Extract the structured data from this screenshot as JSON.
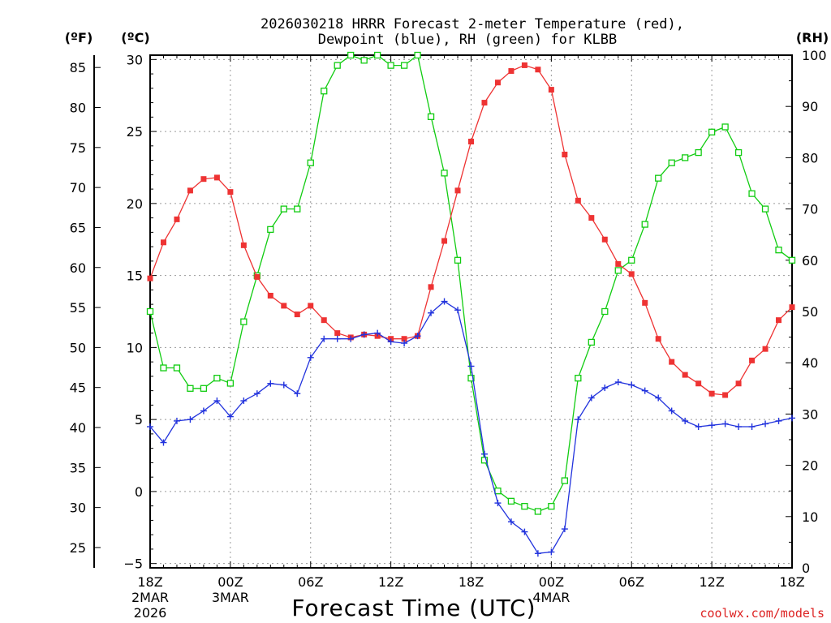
{
  "title_line1": "2026030218 HRRR Forecast 2-meter Temperature (red),",
  "title_line2": "Dewpoint (blue), RH (green) for KLBB",
  "unit_f": "(ºF)",
  "unit_c": "(ºC)",
  "unit_rh": "(RH)",
  "credit": "coolwx.com/models",
  "credit_color": "#dd2222",
  "colors": {
    "temperature": "#ee3333",
    "dewpoint": "#2233dd",
    "rh": "#11cc11"
  },
  "chart_data": {
    "type": "line",
    "title": "2026030218 HRRR Forecast 2-meter Temperature (red), Dewpoint (blue), RH (green) for KLBB",
    "xlabel": "Forecast Time (UTC)",
    "ylabel_left_f": "(ºF)",
    "ylabel_left_c": "(ºC)",
    "ylabel_right": "(RH)",
    "x_hours": [
      0,
      1,
      2,
      3,
      4,
      5,
      6,
      7,
      8,
      9,
      10,
      11,
      12,
      13,
      14,
      15,
      16,
      17,
      18,
      19,
      20,
      21,
      22,
      23,
      24,
      25,
      26,
      27,
      28,
      29,
      30,
      31,
      32,
      33,
      34,
      35,
      36,
      37,
      38,
      39,
      40,
      41,
      42,
      43,
      44,
      45,
      46,
      47,
      48
    ],
    "xlim": [
      0,
      48
    ],
    "x_ticks": [
      {
        "hour": 0,
        "label": "18Z",
        "date": "2MAR",
        "year": "2026"
      },
      {
        "hour": 6,
        "label": "00Z",
        "date": "3MAR",
        "year": ""
      },
      {
        "hour": 12,
        "label": "06Z",
        "date": "",
        "year": ""
      },
      {
        "hour": 18,
        "label": "12Z",
        "date": "",
        "year": ""
      },
      {
        "hour": 24,
        "label": "18Z",
        "date": "",
        "year": ""
      },
      {
        "hour": 30,
        "label": "00Z",
        "date": "4MAR",
        "year": ""
      },
      {
        "hour": 36,
        "label": "06Z",
        "date": "",
        "year": ""
      },
      {
        "hour": 42,
        "label": "12Z",
        "date": "",
        "year": ""
      },
      {
        "hour": 48,
        "label": "18Z",
        "date": "",
        "year": ""
      }
    ],
    "ylim_c": [
      -5.3,
      30.3
    ],
    "ylim_rh": [
      0,
      100
    ],
    "y_ticks_c": [
      -5,
      0,
      5,
      10,
      15,
      20,
      25,
      30
    ],
    "y_ticks_f": [
      25,
      30,
      35,
      40,
      45,
      50,
      55,
      60,
      65,
      70,
      75,
      80,
      85
    ],
    "y_ticks_rh": [
      0,
      10,
      20,
      30,
      40,
      50,
      60,
      70,
      80,
      90,
      100
    ],
    "grid": true,
    "series": [
      {
        "name": "Temperature",
        "unit": "C",
        "marker": "filled-square",
        "values": [
          14.8,
          17.3,
          18.9,
          20.9,
          21.7,
          21.8,
          20.8,
          17.1,
          14.9,
          13.6,
          12.9,
          12.3,
          12.9,
          11.9,
          11.0,
          10.7,
          10.9,
          10.8,
          10.6,
          10.6,
          10.8,
          14.2,
          17.4,
          20.9,
          24.3,
          27.0,
          28.4,
          29.2,
          29.6,
          29.3,
          27.9,
          23.4,
          20.2,
          19.0,
          17.5,
          15.8,
          15.1,
          13.1,
          10.6,
          9.0,
          8.1,
          7.5,
          6.8,
          6.7,
          7.5,
          9.1,
          9.9,
          11.9,
          12.8
        ]
      },
      {
        "name": "Dewpoint",
        "unit": "C",
        "marker": "plus",
        "values": [
          4.5,
          3.4,
          4.9,
          5.0,
          5.6,
          6.3,
          5.2,
          6.3,
          6.8,
          7.5,
          7.4,
          6.8,
          9.3,
          10.6,
          10.6,
          10.6,
          10.9,
          11.0,
          10.4,
          10.3,
          10.8,
          12.4,
          13.2,
          12.6,
          8.7,
          2.6,
          -0.8,
          -2.1,
          -2.8,
          -4.3,
          -4.2,
          -2.6,
          5.0,
          6.5,
          7.2,
          7.6,
          7.4,
          7.0,
          6.5,
          5.6,
          4.9,
          4.5,
          4.6,
          4.7,
          4.5,
          4.5,
          4.7,
          4.9,
          5.1
        ]
      },
      {
        "name": "RH",
        "unit": "%",
        "marker": "open-square",
        "values": [
          50,
          39,
          39,
          35,
          35,
          37,
          36,
          48,
          57,
          66,
          70,
          70,
          79,
          93,
          98,
          100,
          99,
          100,
          98,
          98,
          100,
          88,
          77,
          60,
          37,
          21,
          15,
          13,
          12,
          11,
          12,
          17,
          37,
          44,
          50,
          58,
          60,
          67,
          76,
          79,
          80,
          81,
          85,
          86,
          81,
          73,
          70,
          62,
          60
        ]
      }
    ]
  }
}
